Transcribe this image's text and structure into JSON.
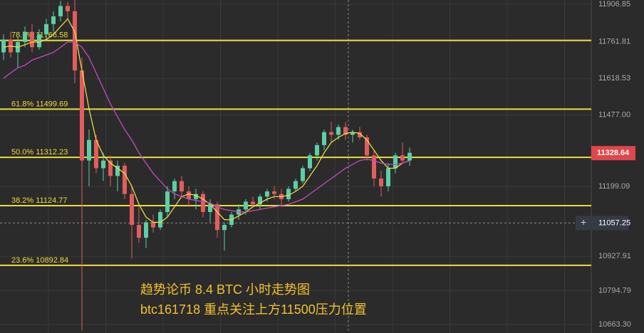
{
  "chart_data": {
    "type": "candlestick",
    "ylim": [
      10630.1,
      11923.4
    ],
    "yticks": [
      11906.85,
      11761.81,
      11618.53,
      {
        "value": 11477.0,
        "label": "11477.00"
      },
      11199.09,
      10927.91,
      10794.79,
      {
        "value": 10663.3,
        "label": "10663.30"
      }
    ],
    "grid": true,
    "up_color": "#5ccfa6",
    "down_color": "#e35d5d",
    "candles": [
      [
        11720,
        11790,
        11690,
        11770
      ],
      [
        11770,
        11800,
        11700,
        11720
      ],
      [
        11720,
        11780,
        11660,
        11760
      ],
      [
        11760,
        11820,
        11740,
        11800
      ],
      [
        11800,
        11830,
        11720,
        11740
      ],
      [
        11740,
        11810,
        11730,
        11790
      ],
      [
        11790,
        11850,
        11770,
        11830
      ],
      [
        11830,
        11880,
        11800,
        11860
      ],
      [
        11860,
        11920,
        11840,
        11900
      ],
      [
        11900,
        11915,
        11850,
        11880
      ],
      [
        11880,
        11923,
        11600,
        11650
      ],
      [
        11650,
        11700,
        10640,
        11300
      ],
      [
        11300,
        11420,
        11200,
        11380
      ],
      [
        11380,
        11400,
        11250,
        11270
      ],
      [
        11270,
        11330,
        11220,
        11300
      ],
      [
        11300,
        11320,
        11200,
        11240
      ],
      [
        11240,
        11300,
        11180,
        11280
      ],
      [
        11280,
        11290,
        11150,
        11170
      ],
      [
        11170,
        11200,
        10920,
        11050
      ],
      [
        11050,
        11120,
        10980,
        11000
      ],
      [
        11000,
        11070,
        10960,
        11060
      ],
      [
        11060,
        11090,
        11020,
        11040
      ],
      [
        11040,
        11110,
        11030,
        11100
      ],
      [
        11100,
        11200,
        11080,
        11180
      ],
      [
        11180,
        11230,
        11150,
        11220
      ],
      [
        11220,
        11240,
        11160,
        11180
      ],
      [
        11180,
        11200,
        11120,
        11150
      ],
      [
        11150,
        11190,
        11110,
        11170
      ],
      [
        11170,
        11180,
        11080,
        11100
      ],
      [
        11100,
        11150,
        11060,
        11130
      ],
      [
        11130,
        11140,
        11000,
        11030
      ],
      [
        11030,
        11060,
        10950,
        11050
      ],
      [
        11050,
        11100,
        11040,
        11090
      ],
      [
        11090,
        11130,
        11070,
        11110
      ],
      [
        11110,
        11150,
        11090,
        11140
      ],
      [
        11140,
        11160,
        11120,
        11130
      ],
      [
        11130,
        11170,
        11110,
        11160
      ],
      [
        11160,
        11190,
        11140,
        11180
      ],
      [
        11180,
        11200,
        11150,
        11170
      ],
      [
        11170,
        11190,
        11120,
        11150
      ],
      [
        11150,
        11200,
        11140,
        11190
      ],
      [
        11190,
        11230,
        11180,
        11220
      ],
      [
        11220,
        11280,
        11210,
        11270
      ],
      [
        11270,
        11330,
        11260,
        11320
      ],
      [
        11320,
        11370,
        11300,
        11360
      ],
      [
        11360,
        11420,
        11340,
        11410
      ],
      [
        11410,
        11450,
        11370,
        11400
      ],
      [
        11400,
        11440,
        11380,
        11430
      ],
      [
        11430,
        11450,
        11380,
        11400
      ],
      [
        11400,
        11420,
        11370,
        11410
      ],
      [
        11410,
        11430,
        11380,
        11390
      ],
      [
        11390,
        11400,
        11300,
        11320
      ],
      [
        11320,
        11340,
        11200,
        11230
      ],
      [
        11230,
        11260,
        11160,
        11200
      ],
      [
        11200,
        11290,
        11180,
        11270
      ],
      [
        11270,
        11330,
        11250,
        11320
      ],
      [
        11320,
        11370,
        11290,
        11300
      ],
      [
        11300,
        11350,
        11280,
        11330
      ]
    ],
    "series": [
      {
        "color": "#e8d84a",
        "values": [
          11740,
          11745,
          11740,
          11750,
          11760,
          11760,
          11770,
          11790,
          11820,
          11850,
          11800,
          11650,
          11500,
          11380,
          11320,
          11290,
          11270,
          11250,
          11200,
          11130,
          11080,
          11060,
          11060,
          11080,
          11120,
          11160,
          11170,
          11165,
          11150,
          11130,
          11100,
          11070,
          11070,
          11085,
          11100,
          11120,
          11135,
          11150,
          11160,
          11160,
          11165,
          11180,
          11200,
          11240,
          11280,
          11330,
          11370,
          11390,
          11405,
          11410,
          11405,
          11380,
          11340,
          11300,
          11270,
          11270,
          11290,
          11300
        ]
      },
      {
        "color": "#c04cc0",
        "values": [
          11620,
          11640,
          11660,
          11670,
          11690,
          11700,
          11710,
          11720,
          11740,
          11760,
          11760,
          11740,
          11700,
          11640,
          11580,
          11520,
          11470,
          11420,
          11380,
          11330,
          11290,
          11250,
          11220,
          11190,
          11170,
          11160,
          11150,
          11145,
          11140,
          11135,
          11120,
          11110,
          11105,
          11100,
          11100,
          11105,
          11110,
          11115,
          11120,
          11125,
          11130,
          11140,
          11150,
          11170,
          11190,
          11210,
          11230,
          11250,
          11270,
          11285,
          11300,
          11305,
          11300,
          11290,
          11285,
          11285,
          11290,
          11300
        ]
      }
    ],
    "fib_levels": [
      {
        "label": "78.6%",
        "value": 11766.58
      },
      {
        "label": "61.8%",
        "value": 11499.69
      },
      {
        "label": "50.0%",
        "value": 11312.23
      },
      {
        "label": "38.2%",
        "value": 11124.77
      },
      {
        "label": "23.6%",
        "value": 10892.84
      }
    ],
    "fib_color": "#ecdc3c",
    "current_price": {
      "value": 11328.64,
      "color": "#e0464a"
    },
    "crosshair_price": 11057.25,
    "crosshair_icon": "+",
    "annotations": [
      "趋势论币 8.4 BTC 小时走势图",
      "btc161718  重点关注上方11500压力位置"
    ],
    "annotation_color": "#f2c12e"
  }
}
